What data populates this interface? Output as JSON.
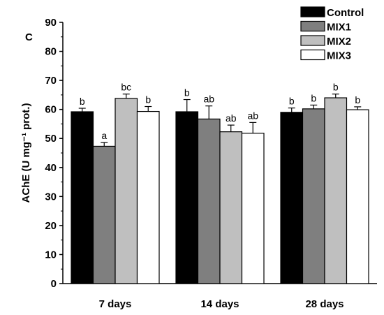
{
  "panel_label": "C",
  "chart_data": {
    "type": "bar",
    "title": "",
    "xlabel": "",
    "ylabel": "AChE (U mg⁻¹ prot.)",
    "ylim": [
      0,
      90
    ],
    "yticks": [
      0,
      10,
      20,
      30,
      40,
      50,
      60,
      70,
      80,
      90
    ],
    "grid": false,
    "legend_position": "top-right",
    "categories": [
      "7 days",
      "14 days",
      "28 days"
    ],
    "series": [
      {
        "name": "Control",
        "color": "#000000",
        "values": [
          59.2,
          59.2,
          59.0
        ],
        "errors": [
          1.2,
          4.2,
          1.5
        ],
        "labels": [
          "b",
          "b",
          "b"
        ]
      },
      {
        "name": "MIX1",
        "color": "#7f7f7f",
        "values": [
          47.3,
          56.7,
          60.2
        ],
        "errors": [
          1.3,
          4.5,
          1.3
        ],
        "labels": [
          "a",
          "ab",
          "b"
        ]
      },
      {
        "name": "MIX2",
        "color": "#bfbfbf",
        "values": [
          63.8,
          52.3,
          64.0
        ],
        "errors": [
          1.5,
          2.3,
          1.3
        ],
        "labels": [
          "bc",
          "ab",
          "b"
        ]
      },
      {
        "name": "MIX3",
        "color": "#ffffff",
        "values": [
          59.3,
          51.8,
          59.9
        ],
        "errors": [
          1.7,
          3.7,
          1.0
        ],
        "labels": [
          "b",
          "ab",
          "b"
        ]
      }
    ]
  }
}
